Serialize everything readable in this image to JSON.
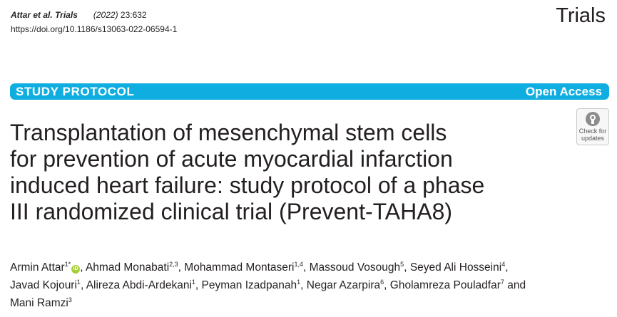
{
  "header": {
    "citation_authors": "Attar",
    "citation_etal": "et al.",
    "citation_journal": "Trials",
    "citation_year_prefix": "(2022)",
    "citation_volume": "23:632",
    "doi": "https://doi.org/10.1186/s13063-022-06594-1",
    "journal_name": "Trials"
  },
  "banner": {
    "type": "STUDY PROTOCOL",
    "access": "Open Access",
    "color": "#10aee0"
  },
  "updates_badge": {
    "line1": "Check for",
    "line2": "updates",
    "icon": "bookmark-icon"
  },
  "title": {
    "line1": "Transplantation of mesenchymal stem cells",
    "line2": "for prevention of acute myocardial infarction",
    "line3": "induced heart failure: study protocol of a phase",
    "line4": "III randomized clinical trial (Prevent-TAHA8)"
  },
  "authors": [
    {
      "name": "Armin Attar",
      "sup": "1*",
      "orcid": "iD"
    },
    {
      "name": "Ahmad Monabati",
      "sup": "2,3"
    },
    {
      "name": "Mohammad Montaseri",
      "sup": "1,4"
    },
    {
      "name": "Massoud Vosough",
      "sup": "5"
    },
    {
      "name": "Seyed Ali Hosseini",
      "sup": "4"
    },
    {
      "name": "Javad Kojouri",
      "sup": "1"
    },
    {
      "name": "Alireza Abdi-Ardekani",
      "sup": "1"
    },
    {
      "name": "Peyman Izadpanah",
      "sup": "1"
    },
    {
      "name": "Negar Azarpira",
      "sup": "6"
    },
    {
      "name": "Gholamreza Pouladfar",
      "sup": "7"
    },
    {
      "name": "Mani Ramzi",
      "sup": "3"
    }
  ],
  "authors_conjunction": "and",
  "orcid_color": "#a6ce39"
}
